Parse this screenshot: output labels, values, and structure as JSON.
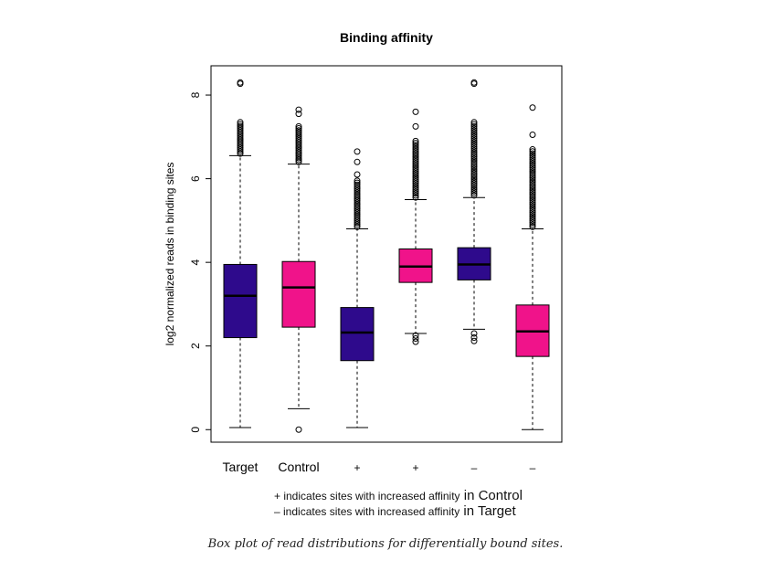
{
  "chart_data": {
    "type": "boxplot",
    "title": "Binding affinity",
    "ylabel": "log2 normalized reads in binding sites",
    "xlabel": "",
    "ylim": [
      -0.3,
      8.7
    ],
    "yticks": [
      0,
      2,
      4,
      6,
      8
    ],
    "grid": false,
    "categories": [
      "Target",
      "Control",
      "+",
      "+",
      "–",
      "–"
    ],
    "boxes": [
      {
        "label": "Target",
        "color": "#2e0a8c",
        "q1": 2.2,
        "median": 3.2,
        "q3": 3.95,
        "whisker_low": 0.05,
        "whisker_high": 6.55,
        "outliers_high_dense": [
          6.6,
          7.35
        ],
        "outliers": [
          8.27,
          8.3
        ]
      },
      {
        "label": "Control",
        "color": "#f0138a",
        "q1": 2.45,
        "median": 3.4,
        "q3": 4.02,
        "whisker_low": 0.5,
        "whisker_high": 6.35,
        "outliers_high_dense": [
          6.4,
          7.25
        ],
        "outliers": [
          7.55,
          7.65,
          0.0
        ]
      },
      {
        "label": "+",
        "color": "#2e0a8c",
        "q1": 1.65,
        "median": 2.32,
        "q3": 2.92,
        "whisker_low": 0.05,
        "whisker_high": 4.8,
        "outliers_high_dense": [
          4.85,
          5.95
        ],
        "outliers": [
          6.1,
          6.4,
          6.65
        ]
      },
      {
        "label": "+",
        "color": "#f0138a",
        "q1": 3.52,
        "median": 3.9,
        "q3": 4.32,
        "whisker_low": 2.3,
        "whisker_high": 5.5,
        "outliers_high_dense": [
          5.55,
          6.9
        ],
        "outliers": [
          7.25,
          7.6,
          2.1,
          2.18,
          2.25
        ]
      },
      {
        "label": "–",
        "color": "#2e0a8c",
        "q1": 3.58,
        "median": 3.95,
        "q3": 4.35,
        "whisker_low": 2.4,
        "whisker_high": 5.55,
        "outliers_high_dense": [
          5.6,
          7.35
        ],
        "outliers": [
          8.27,
          8.3,
          2.12,
          2.2,
          2.3
        ]
      },
      {
        "label": "–",
        "color": "#f0138a",
        "q1": 1.75,
        "median": 2.35,
        "q3": 2.98,
        "whisker_low": 0.0,
        "whisker_high": 4.8,
        "outliers_high_dense": [
          4.85,
          6.7
        ],
        "outliers": [
          7.05,
          7.7
        ]
      }
    ]
  },
  "legend_note": {
    "line1_small": "+ indicates sites with increased affinity",
    "line1_big": " in Control",
    "line2_small": "– indicates sites with increased affinity",
    "line2_big": " in Target"
  },
  "caption": "Box plot of read distributions for differentially bound sites."
}
